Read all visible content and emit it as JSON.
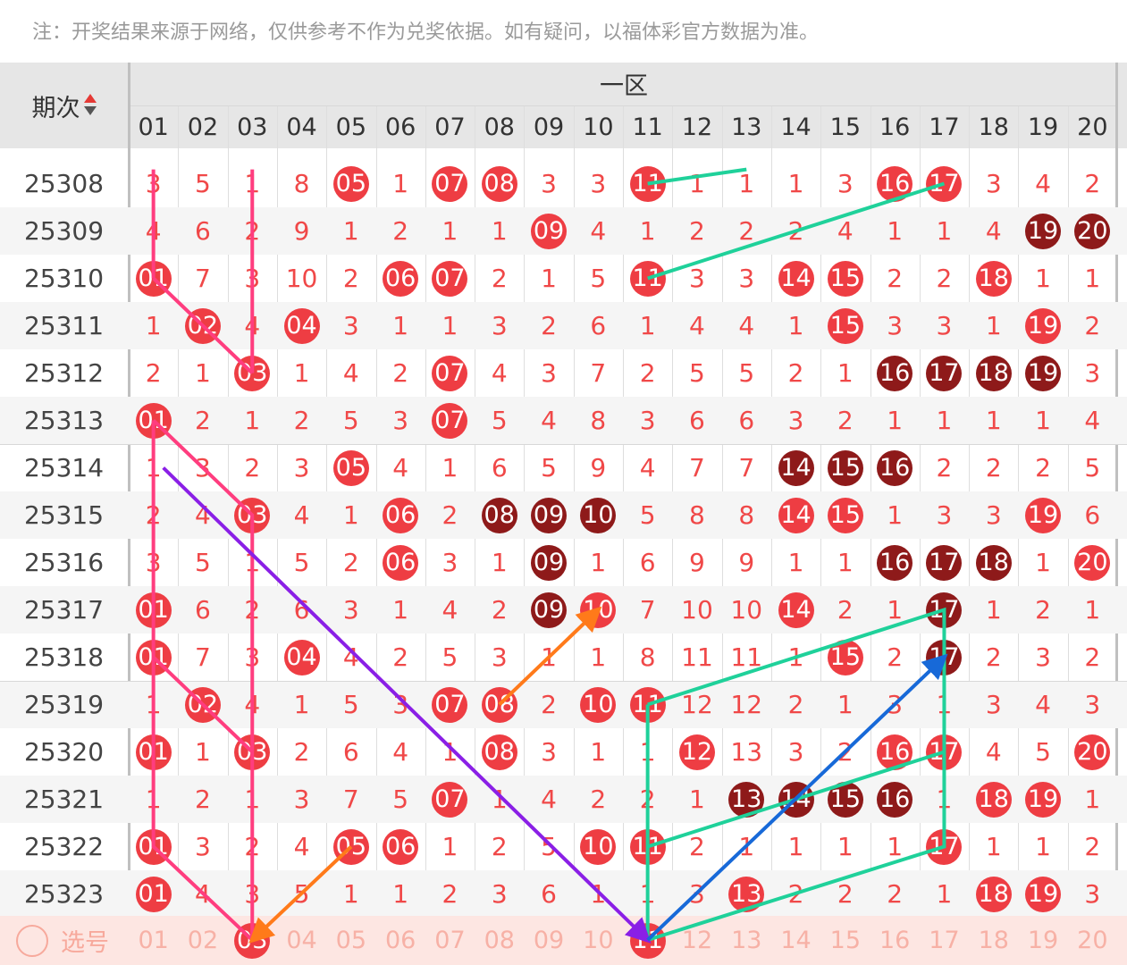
{
  "notice": "注：开奖结果来源于网络，仅供参考不作为兑奖依据。如有疑问，以福体彩官方数据为准。",
  "header": {
    "zone_title": "一区",
    "issue_label": "期次"
  },
  "columns": [
    "01",
    "02",
    "03",
    "04",
    "05",
    "06",
    "07",
    "08",
    "09",
    "10",
    "11",
    "12",
    "13",
    "14",
    "15",
    "16",
    "17",
    "18",
    "19",
    "20"
  ],
  "rows": [
    {
      "issue": "25308",
      "cells": [
        "3",
        "5",
        "1",
        "8",
        "B:05",
        "1",
        "B:07",
        "B:08",
        "3",
        "3",
        "B:11",
        "1",
        "1",
        "1",
        "3",
        "B:16",
        "B:17",
        "3",
        "4",
        "2"
      ]
    },
    {
      "issue": "25309",
      "cells": [
        "4",
        "6",
        "2",
        "9",
        "1",
        "2",
        "1",
        "1",
        "B:09",
        "4",
        "1",
        "2",
        "2",
        "2",
        "4",
        "1",
        "1",
        "4",
        "D:19",
        "D:20"
      ]
    },
    {
      "issue": "25310",
      "cells": [
        "B:01",
        "7",
        "3",
        "10",
        "2",
        "B:06",
        "B:07",
        "2",
        "1",
        "5",
        "B:11",
        "3",
        "3",
        "B:14",
        "B:15",
        "2",
        "2",
        "B:18",
        "1",
        "1"
      ]
    },
    {
      "issue": "25311",
      "cells": [
        "1",
        "B:02",
        "4",
        "B:04",
        "3",
        "1",
        "1",
        "3",
        "2",
        "6",
        "1",
        "4",
        "4",
        "1",
        "B:15",
        "3",
        "3",
        "1",
        "B:19",
        "2"
      ]
    },
    {
      "issue": "25312",
      "cells": [
        "2",
        "1",
        "B:03",
        "1",
        "4",
        "2",
        "B:07",
        "4",
        "3",
        "7",
        "2",
        "5",
        "5",
        "2",
        "1",
        "D:16",
        "D:17",
        "D:18",
        "D:19",
        "3"
      ]
    },
    {
      "issue": "25313",
      "cells": [
        "B:01",
        "2",
        "1",
        "2",
        "5",
        "3",
        "B:07",
        "5",
        "4",
        "8",
        "3",
        "6",
        "6",
        "3",
        "2",
        "1",
        "1",
        "1",
        "1",
        "4"
      ]
    },
    {
      "issue": "25314",
      "cells": [
        "1",
        "3",
        "2",
        "3",
        "B:05",
        "4",
        "1",
        "6",
        "5",
        "9",
        "4",
        "7",
        "7",
        "D:14",
        "D:15",
        "D:16",
        "2",
        "2",
        "2",
        "5"
      ]
    },
    {
      "issue": "25315",
      "cells": [
        "2",
        "4",
        "B:03",
        "4",
        "1",
        "B:06",
        "2",
        "D:08",
        "D:09",
        "D:10",
        "5",
        "8",
        "8",
        "B:14",
        "B:15",
        "1",
        "3",
        "3",
        "B:19",
        "6"
      ]
    },
    {
      "issue": "25316",
      "cells": [
        "3",
        "5",
        "1",
        "5",
        "2",
        "B:06",
        "3",
        "1",
        "D:09",
        "1",
        "6",
        "9",
        "9",
        "1",
        "1",
        "D:16",
        "D:17",
        "D:18",
        "1",
        "B:20"
      ]
    },
    {
      "issue": "25317",
      "cells": [
        "B:01",
        "6",
        "2",
        "6",
        "3",
        "1",
        "4",
        "2",
        "D:09",
        "B:10",
        "7",
        "10",
        "10",
        "B:14",
        "2",
        "1",
        "D:17",
        "1",
        "2",
        "1"
      ]
    },
    {
      "issue": "25318",
      "cells": [
        "B:01",
        "7",
        "3",
        "B:04",
        "4",
        "2",
        "5",
        "3",
        "1",
        "1",
        "8",
        "11",
        "11",
        "1",
        "B:15",
        "2",
        "D:17",
        "2",
        "3",
        "2"
      ]
    },
    {
      "issue": "25319",
      "cells": [
        "1",
        "B:02",
        "4",
        "1",
        "5",
        "3",
        "B:07",
        "B:08",
        "2",
        "B:10",
        "B:11",
        "12",
        "12",
        "2",
        "1",
        "3",
        "1",
        "3",
        "4",
        "3"
      ]
    },
    {
      "issue": "25320",
      "cells": [
        "B:01",
        "1",
        "B:03",
        "2",
        "6",
        "4",
        "1",
        "B:08",
        "3",
        "1",
        "1",
        "B:12",
        "13",
        "3",
        "2",
        "B:16",
        "B:17",
        "4",
        "5",
        "B:20"
      ]
    },
    {
      "issue": "25321",
      "cells": [
        "1",
        "2",
        "1",
        "3",
        "7",
        "5",
        "B:07",
        "1",
        "4",
        "2",
        "2",
        "1",
        "D:13",
        "D:14",
        "D:15",
        "D:16",
        "1",
        "B:18",
        "B:19",
        "1"
      ]
    },
    {
      "issue": "25322",
      "cells": [
        "B:01",
        "3",
        "2",
        "4",
        "B:05",
        "B:06",
        "1",
        "2",
        "5",
        "B:10",
        "B:11",
        "2",
        "1",
        "1",
        "1",
        "1",
        "B:17",
        "1",
        "1",
        "2"
      ]
    },
    {
      "issue": "25323",
      "cells": [
        "B:01",
        "4",
        "3",
        "5",
        "1",
        "1",
        "2",
        "3",
        "6",
        "1",
        "1",
        "3",
        "B:13",
        "2",
        "2",
        "2",
        "1",
        "B:18",
        "B:19",
        "3"
      ]
    }
  ],
  "select_row": {
    "label": "选号",
    "cells": [
      "01",
      "02",
      "B:03",
      "04",
      "05",
      "06",
      "07",
      "08",
      "09",
      "10",
      "B:11",
      "12",
      "13",
      "14",
      "15",
      "16",
      "17",
      "18",
      "19",
      "20"
    ]
  },
  "colors": {
    "ball": "#ee3d43",
    "ball_dark": "#8e1a1a",
    "pink_line": "#ff3d7f",
    "teal_line": "#1fd19a",
    "purple_arrow": "#8a1fe6",
    "orange_arrow": "#ff7a1a",
    "blue_arrow": "#1769d8"
  }
}
